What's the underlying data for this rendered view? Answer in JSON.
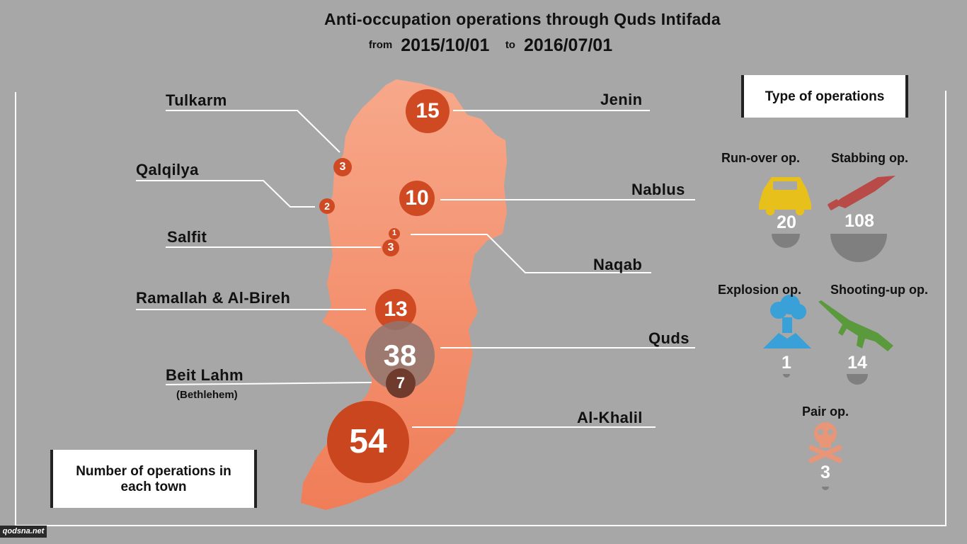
{
  "header": {
    "title": "Anti-occupation operations through Quds Intifada",
    "from_label": "from",
    "from_date": "2015/10/01",
    "to_label": "to",
    "to_date": "2016/07/01"
  },
  "towns": [
    {
      "name": "Tulkarm",
      "count": "3"
    },
    {
      "name": "Qalqilya",
      "count": "2"
    },
    {
      "name": "Salfit",
      "count": "3"
    },
    {
      "name": "Ramallah & Al-Bireh",
      "count": "13"
    },
    {
      "name": "Beit Lahm",
      "sub": "(Bethlehem)",
      "count": "7"
    },
    {
      "name": "Jenin",
      "count": "15"
    },
    {
      "name": "Nablus",
      "count": "10"
    },
    {
      "name": "Naqab",
      "count": "1"
    },
    {
      "name": "Quds",
      "count": "38"
    },
    {
      "name": "Al-Khalil",
      "count": "54"
    }
  ],
  "legend_box": {
    "text": "Number of operations in each town"
  },
  "types_box": {
    "title": "Type of operations"
  },
  "operation_types": [
    {
      "label": "Run-over op.",
      "count": "20",
      "icon": "car-icon",
      "color": "#e8c01c"
    },
    {
      "label": "Stabbing op.",
      "count": "108",
      "icon": "knife-icon",
      "color": "#b84a48"
    },
    {
      "label": "Explosion op.",
      "count": "1",
      "icon": "explosion-icon",
      "color": "#3aa0d8"
    },
    {
      "label": "Shooting-up op.",
      "count": "14",
      "icon": "rifle-icon",
      "color": "#5a9a3c"
    },
    {
      "label": "Pair op.",
      "count": "3",
      "icon": "skull-icon",
      "color": "#e89578"
    }
  ],
  "colors": {
    "background": "#a7a7a7",
    "map_fill": "#f28c68",
    "bubble": "#cf4a22",
    "semi_bubble": "#7f7f7f"
  },
  "watermark": "qodsna.net"
}
